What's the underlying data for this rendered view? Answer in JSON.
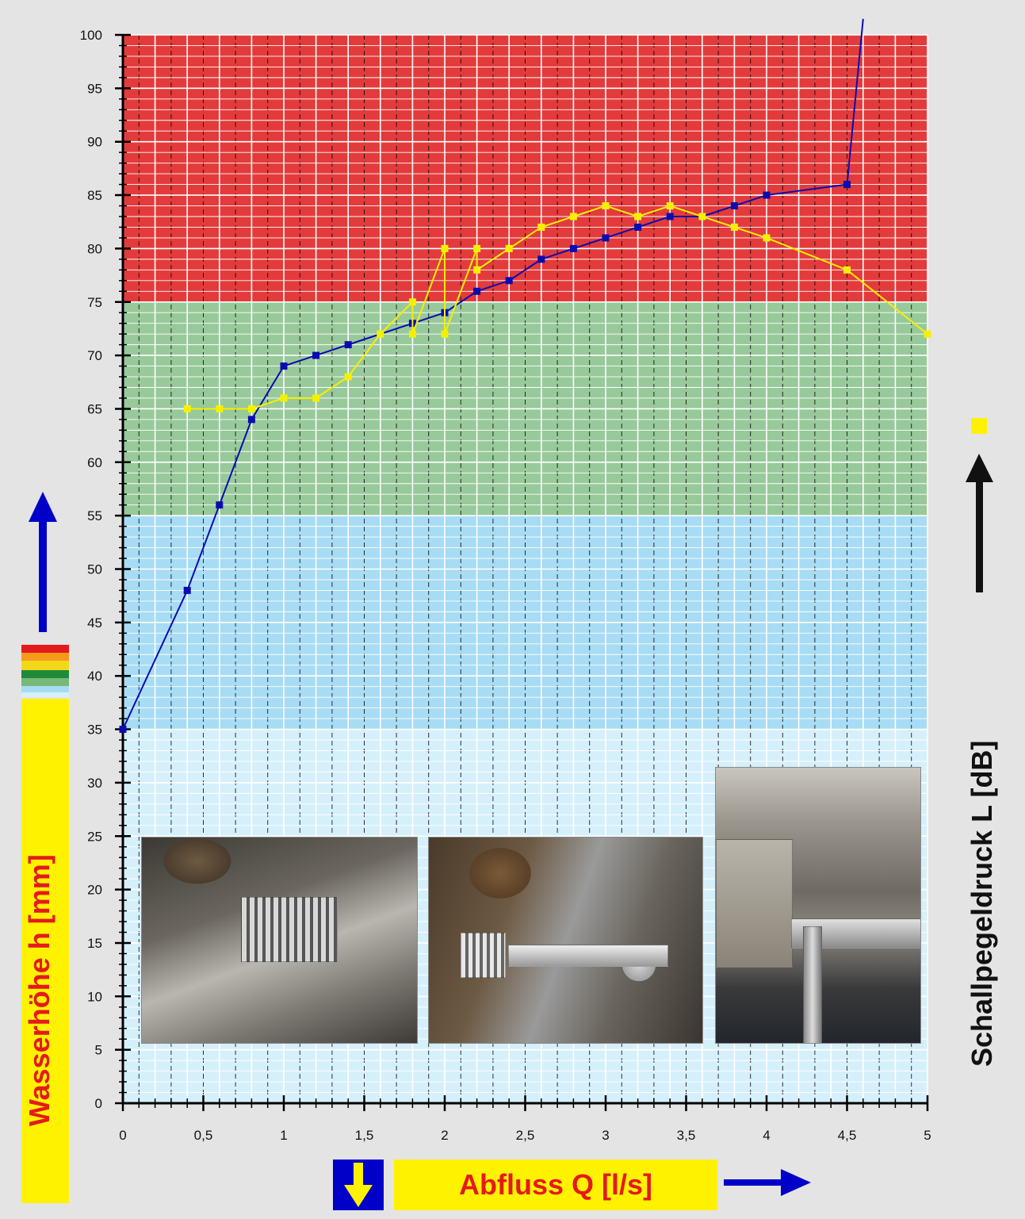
{
  "chart_data": {
    "type": "line",
    "xlabel": "Abfluss Q [l/s]",
    "ylabel_left": "Wasserhöhe h [mm]",
    "ylabel_right": "Schallpegeldruck L [dB]",
    "xlim": [
      0,
      5
    ],
    "ylim": [
      0,
      100
    ],
    "x_ticks": [
      "0",
      "0,5",
      "1",
      "1,5",
      "2",
      "2,5",
      "3",
      "3,5",
      "4",
      "4,5",
      "5"
    ],
    "y_ticks": [
      "0",
      "5",
      "10",
      "15",
      "20",
      "25",
      "30",
      "35",
      "40",
      "45",
      "50",
      "55",
      "60",
      "65",
      "70",
      "75",
      "80",
      "85",
      "90",
      "95",
      "100"
    ],
    "grid": true,
    "bands": [
      {
        "from": 75,
        "to": 100,
        "color": "#e33b3b"
      },
      {
        "from": 55,
        "to": 75,
        "color": "#98c99a"
      },
      {
        "from": 35,
        "to": 55,
        "color": "#a7dcf4"
      },
      {
        "from": 0,
        "to": 35,
        "color": "#d6f0fb"
      }
    ],
    "series": [
      {
        "color": "#0b0bb0",
        "points": [
          [
            0,
            35
          ],
          [
            0.4,
            48
          ],
          [
            0.6,
            56
          ],
          [
            0.8,
            64
          ],
          [
            1.0,
            69
          ],
          [
            1.2,
            70
          ],
          [
            1.4,
            71
          ],
          [
            1.8,
            73
          ],
          [
            2.0,
            74
          ],
          [
            2.2,
            76
          ],
          [
            2.4,
            77
          ],
          [
            2.6,
            79
          ],
          [
            2.8,
            80
          ],
          [
            3.0,
            81
          ],
          [
            3.2,
            82
          ],
          [
            3.4,
            83
          ],
          [
            3.6,
            83
          ],
          [
            3.8,
            84
          ],
          [
            4.0,
            85
          ],
          [
            4.5,
            86
          ],
          [
            4.6,
            101.5
          ]
        ]
      },
      {
        "color": "#f5f000",
        "points": [
          [
            0.4,
            65
          ],
          [
            0.6,
            65
          ],
          [
            0.8,
            65
          ],
          [
            1.0,
            66
          ],
          [
            1.2,
            66
          ],
          [
            1.4,
            68
          ],
          [
            1.6,
            72
          ],
          [
            1.8,
            75
          ],
          [
            1.8,
            72
          ],
          [
            2.0,
            80
          ],
          [
            2.0,
            72
          ],
          [
            2.2,
            80
          ],
          [
            2.2,
            78
          ],
          [
            2.4,
            80
          ],
          [
            2.6,
            82
          ],
          [
            2.8,
            83
          ],
          [
            3.0,
            84
          ],
          [
            3.2,
            83
          ],
          [
            3.4,
            84
          ],
          [
            3.6,
            83
          ],
          [
            3.8,
            82
          ],
          [
            4.0,
            81
          ],
          [
            4.5,
            78
          ],
          [
            5.0,
            72
          ]
        ]
      }
    ]
  },
  "colors": {
    "accent_red": "#e41a1c",
    "accent_yellow": "#fff200",
    "accent_blue": "#0000c8"
  },
  "photos": [
    "drain-grate-photo",
    "pipe-assembly-photo",
    "vertical-pipe-photo"
  ]
}
